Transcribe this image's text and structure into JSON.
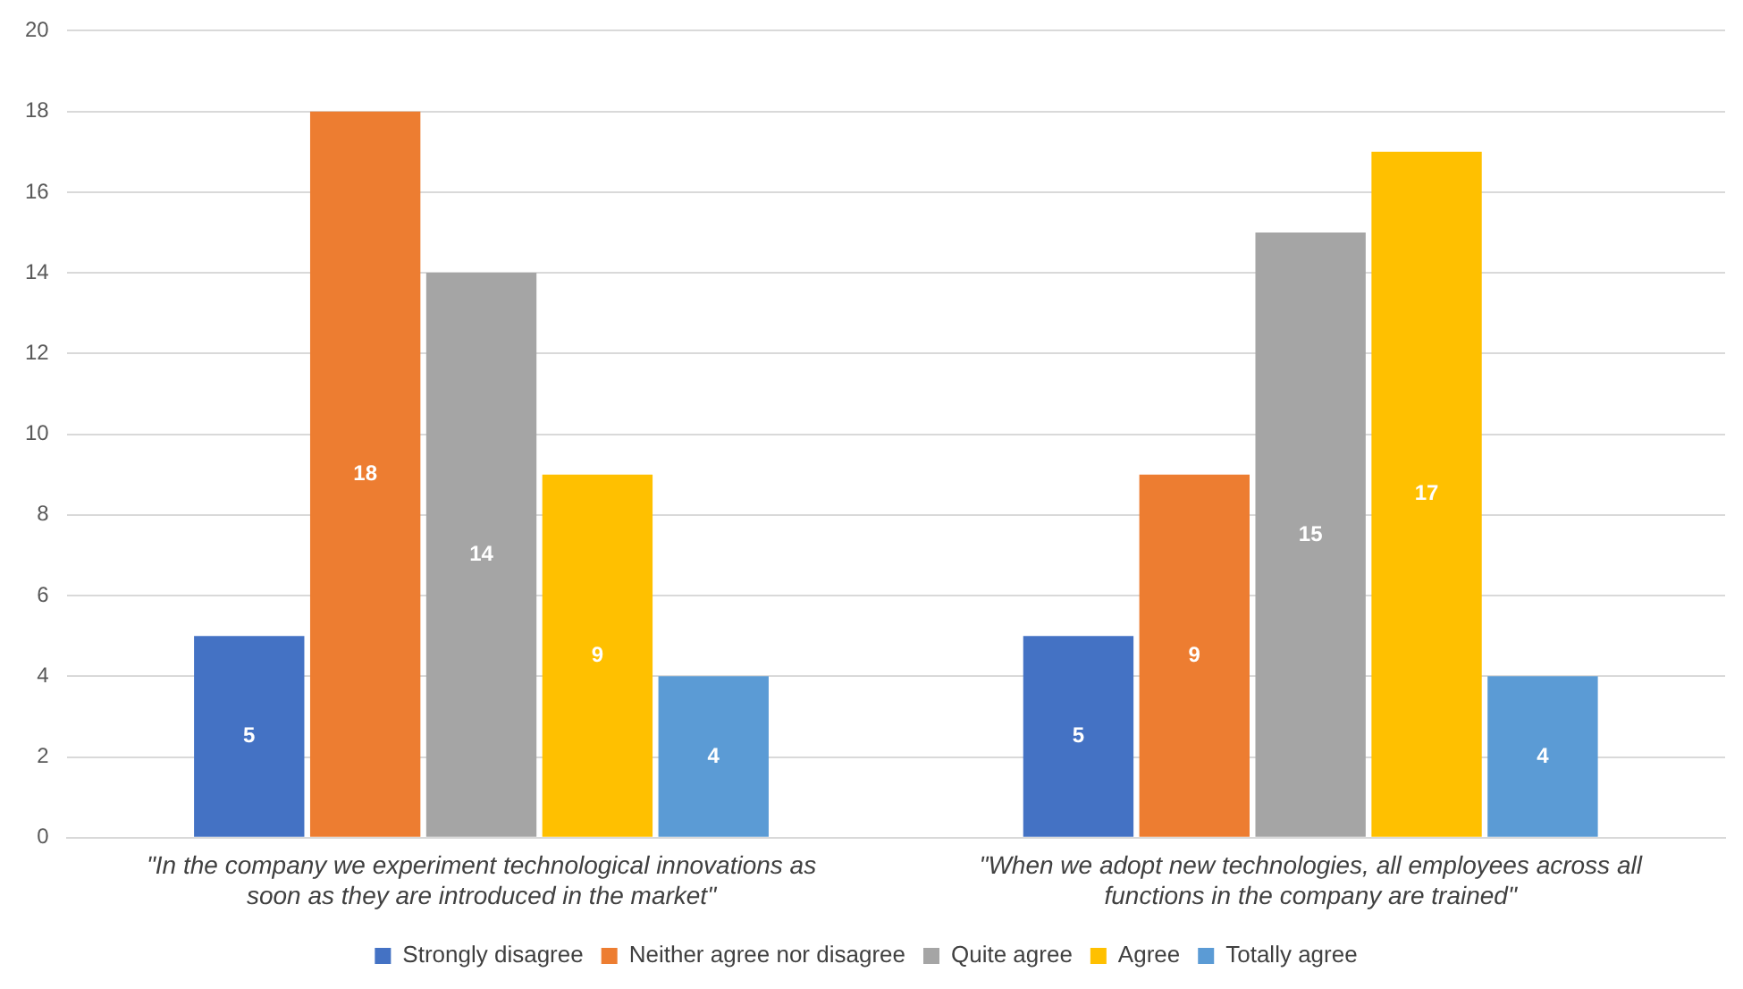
{
  "chart_data": {
    "type": "bar",
    "categories": [
      "\"In the company we experiment technological innovations as soon as they are introduced in the market\"",
      "\"When we adopt new technologies, all employees across all functions in the company are trained\""
    ],
    "series": [
      {
        "name": "Strongly disagree",
        "color": "#4472c4",
        "values": [
          5,
          5
        ]
      },
      {
        "name": "Neither agree nor disagree",
        "color": "#ed7d31",
        "values": [
          18,
          9
        ]
      },
      {
        "name": "Quite agree",
        "color": "#a5a5a5",
        "values": [
          14,
          15
        ]
      },
      {
        "name": "Agree",
        "color": "#ffc000",
        "values": [
          9,
          17
        ]
      },
      {
        "name": "Totally agree",
        "color": "#5b9bd5",
        "values": [
          4,
          4
        ]
      }
    ],
    "ylim": [
      0,
      20
    ],
    "yticks": [
      0,
      2,
      4,
      6,
      8,
      10,
      12,
      14,
      16,
      18,
      20
    ],
    "grid": "y",
    "legend": "bottom",
    "data_labels": true
  }
}
